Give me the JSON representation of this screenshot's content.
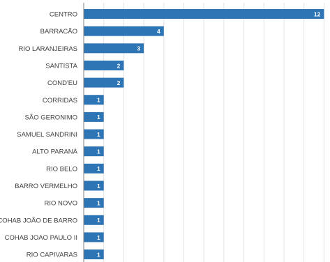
{
  "chart_data": {
    "type": "bar",
    "orientation": "horizontal",
    "title": "",
    "xlabel": "",
    "ylabel": "",
    "categories": [
      "CENTRO",
      "BARRACÃO",
      "RIO LARANJEIRAS",
      "SANTISTA",
      "COND'EU",
      "CORRIDAS",
      "SÃO GERONIMO",
      "SAMUEL SANDRINI",
      "ALTO PARANÁ",
      "RIO BELO",
      "BARRO VERMELHO",
      "RIO NOVO",
      "COHAB JOÃO DE BARRO",
      "COHAB JOAO PAULO II",
      "RIO CAPIVARAS"
    ],
    "values": [
      12,
      4,
      3,
      2,
      2,
      1,
      1,
      1,
      1,
      1,
      1,
      1,
      1,
      1,
      1
    ],
    "value_labels": [
      "12",
      "4",
      "3",
      "2",
      "2",
      "1",
      "1",
      "1",
      "1",
      "1",
      "1",
      "1",
      "1",
      "1",
      "1"
    ],
    "xlim": [
      0,
      12.3
    ],
    "grid": true,
    "legend": "none",
    "bar_color": "#2e75b6",
    "grid_color": "#e3e3e3",
    "axis_color": "#808080",
    "label_color": "#404040",
    "value_label_color": "#ffffff"
  }
}
